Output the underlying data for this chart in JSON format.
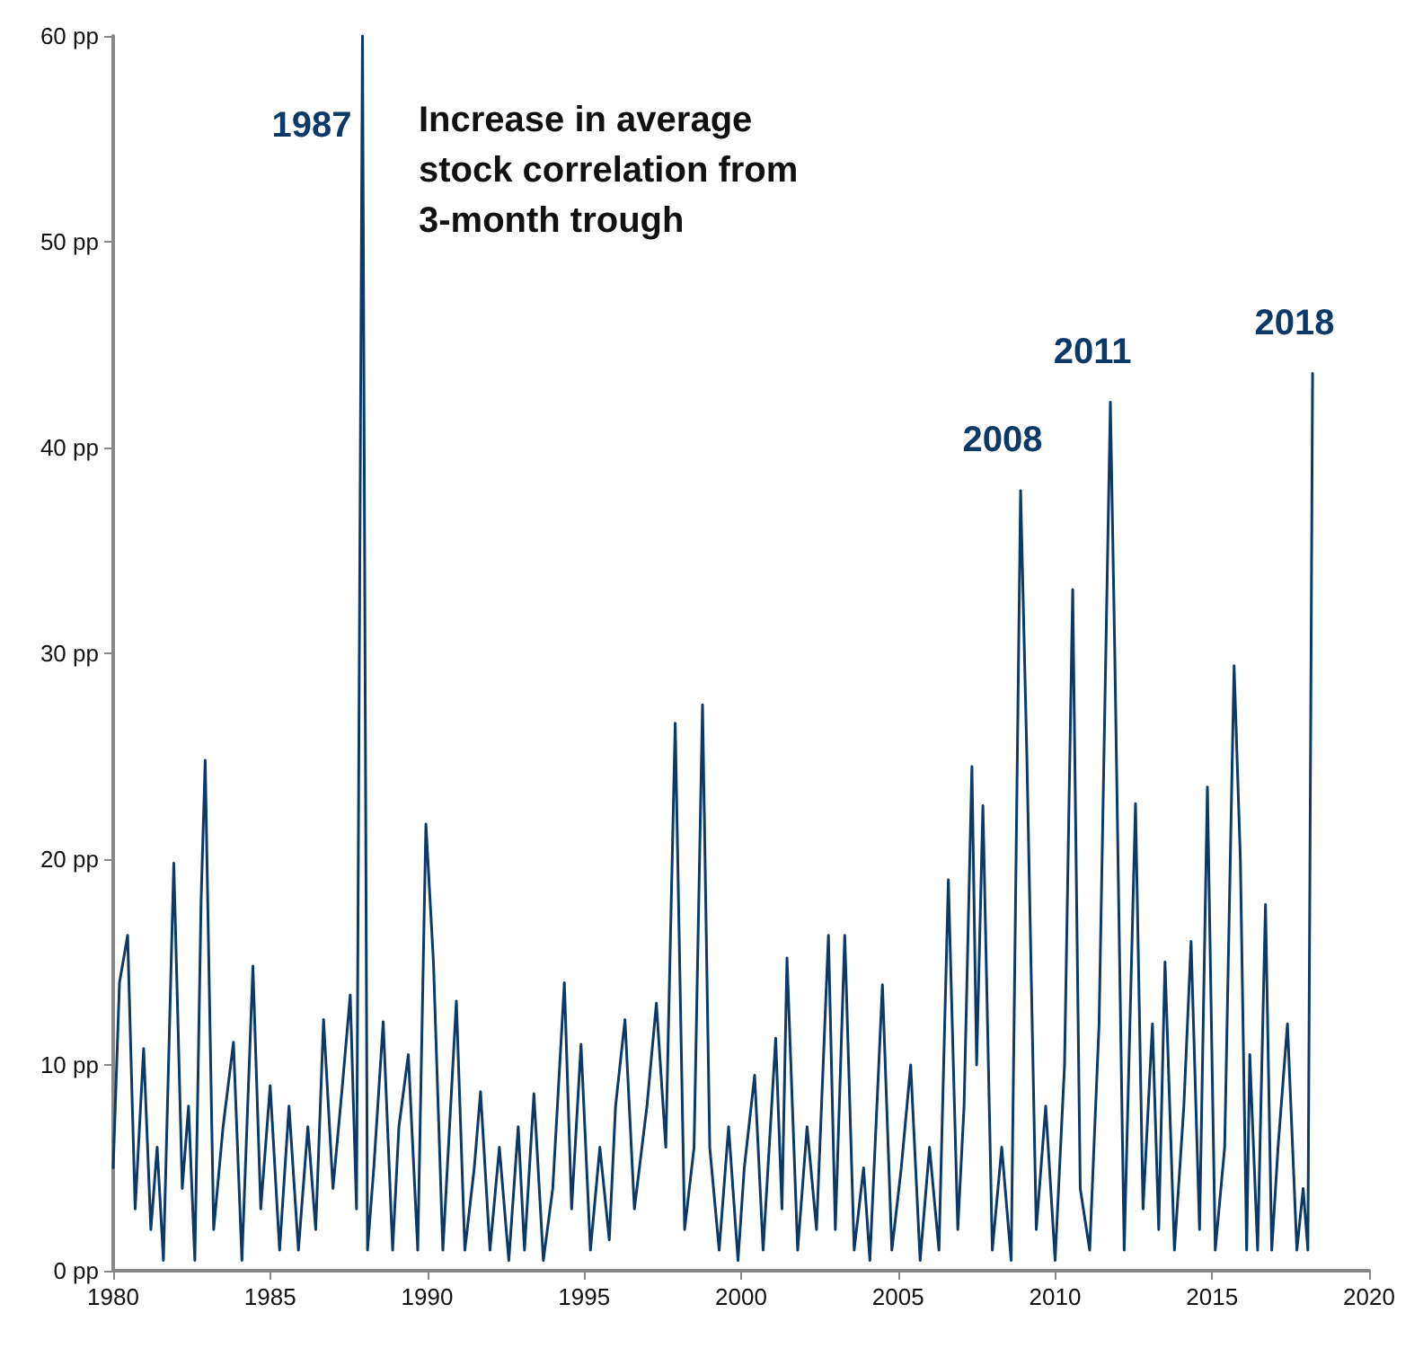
{
  "chart_data": {
    "type": "line",
    "title": "Increase in average stock correlation from 3-month trough",
    "xlim": [
      1980,
      2020
    ],
    "xticks": [
      1980,
      1985,
      1990,
      1995,
      2000,
      2005,
      2010,
      2015,
      2020
    ],
    "ylim": [
      0,
      60
    ],
    "yticks": [
      {
        "value": 0,
        "label": "0 pp"
      },
      {
        "value": 10,
        "label": "10 pp"
      },
      {
        "value": 20,
        "label": "20 pp"
      },
      {
        "value": 30,
        "label": "30 pp"
      },
      {
        "value": 40,
        "label": "40 pp"
      },
      {
        "value": 50,
        "label": "50 pp"
      },
      {
        "value": 60,
        "label": "60 pp"
      }
    ],
    "grid": false,
    "marker": "none",
    "line_style": "solid",
    "annotations": [
      {
        "text": "1987",
        "x": 1987.94,
        "y": 60
      },
      {
        "text": "2008",
        "x": 2008.9,
        "y": 37.9
      },
      {
        "text": "2011",
        "x": 2011.76,
        "y": 42.2
      },
      {
        "text": "2018",
        "x": 2018.2,
        "y": 43.6
      }
    ],
    "series": [
      {
        "color": "#0b3a68",
        "x": [
          1980.0,
          1980.2,
          1980.46,
          1980.7,
          1980.97,
          1981.2,
          1981.4,
          1981.6,
          1981.93,
          1982.2,
          1982.4,
          1982.6,
          1982.8,
          1982.93,
          1983.2,
          1983.5,
          1983.83,
          1984.1,
          1984.45,
          1984.7,
          1985.0,
          1985.3,
          1985.6,
          1985.9,
          1986.2,
          1986.45,
          1986.7,
          1987.0,
          1987.3,
          1987.55,
          1987.75,
          1987.94,
          1988.1,
          1988.3,
          1988.6,
          1988.9,
          1989.1,
          1989.4,
          1989.7,
          1989.96,
          1990.2,
          1990.5,
          1990.93,
          1991.2,
          1991.5,
          1991.7,
          1992.0,
          1992.3,
          1992.6,
          1992.9,
          1993.1,
          1993.4,
          1993.7,
          1994.0,
          1994.37,
          1994.6,
          1994.9,
          1995.2,
          1995.5,
          1995.8,
          1996.0,
          1996.3,
          1996.6,
          1997.0,
          1997.3,
          1997.6,
          1997.9,
          1998.2,
          1998.5,
          1998.77,
          1999.0,
          1999.3,
          1999.6,
          1999.9,
          2000.1,
          2000.43,
          2000.7,
          2001.1,
          2001.3,
          2001.46,
          2001.8,
          2002.1,
          2002.4,
          2002.78,
          2003.0,
          2003.3,
          2003.6,
          2003.9,
          2004.1,
          2004.5,
          2004.8,
          2005.1,
          2005.4,
          2005.7,
          2006.0,
          2006.3,
          2006.6,
          2006.9,
          2007.1,
          2007.35,
          2007.5,
          2007.7,
          2008.0,
          2008.3,
          2008.6,
          2008.9,
          2009.1,
          2009.4,
          2009.7,
          2010.0,
          2010.3,
          2010.56,
          2010.8,
          2011.1,
          2011.4,
          2011.76,
          2011.9,
          2012.2,
          2012.56,
          2012.8,
          2013.1,
          2013.3,
          2013.5,
          2013.8,
          2014.1,
          2014.33,
          2014.6,
          2014.85,
          2015.1,
          2015.4,
          2015.7,
          2015.9,
          2016.1,
          2016.2,
          2016.45,
          2016.7,
          2016.9,
          2017.1,
          2017.4,
          2017.7,
          2017.9,
          2018.05,
          2018.2
        ],
        "values": [
          5,
          14,
          16.3,
          3,
          10.8,
          2,
          6,
          0.5,
          19.8,
          4,
          8,
          0.5,
          18,
          24.8,
          2,
          7,
          11.1,
          0.5,
          14.8,
          3,
          9,
          1,
          8,
          1,
          7,
          2,
          12.2,
          4,
          9,
          13.4,
          3,
          60,
          1,
          5,
          12.1,
          1,
          7,
          10.5,
          1,
          21.7,
          15,
          1,
          13.1,
          1,
          5,
          8.7,
          1,
          6,
          0.5,
          7,
          1,
          8.6,
          0.5,
          4,
          14,
          3,
          11,
          1,
          6,
          1.5,
          8,
          12.2,
          3,
          8,
          13,
          6,
          26.6,
          2,
          6,
          27.5,
          6,
          1,
          7,
          0.5,
          5,
          9.5,
          1,
          11.3,
          3,
          15.2,
          1,
          7,
          2,
          16.3,
          2,
          16.3,
          1,
          5,
          0.5,
          13.9,
          1,
          5,
          10,
          0.5,
          6,
          1,
          19,
          2,
          8,
          24.5,
          10,
          22.6,
          1,
          6,
          0.5,
          37.9,
          25,
          2,
          8,
          0.5,
          10,
          33.1,
          4,
          1,
          12,
          42.2,
          30,
          1,
          22.7,
          3,
          12,
          2,
          15,
          1,
          8,
          16,
          2,
          23.5,
          1,
          6,
          29.4,
          20,
          1,
          10.5,
          1,
          17.8,
          1,
          6,
          12,
          1,
          4,
          1,
          43.6
        ]
      }
    ]
  }
}
